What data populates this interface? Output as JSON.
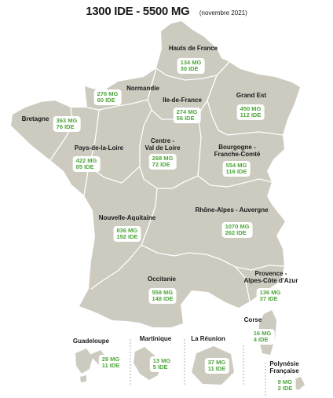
{
  "title": {
    "main": "1300 IDE - 5500 MG",
    "date": "(novembre 2021)"
  },
  "colors": {
    "land": "#cdcabf",
    "border": "#ffffff",
    "value": "#4ea63b",
    "label": "#1a1a1a"
  },
  "regions": [
    {
      "name": "Hauts de France",
      "mg": "134 MG",
      "ide": "30 IDE"
    },
    {
      "name": "Normandie",
      "mg": "276 MG",
      "ide": "60 IDE"
    },
    {
      "name": "Ile-de-France",
      "mg": "274 MG",
      "ide": "56 IDE"
    },
    {
      "name": "Grand Est",
      "mg": "450 MG",
      "ide": "112 IDE"
    },
    {
      "name": "Bretagne",
      "mg": "363 MG",
      "ide": "76 IDE"
    },
    {
      "name": "Pays-de-la-Loire",
      "mg": "422 MG",
      "ide": "85 IDE"
    },
    {
      "name": "Centre -\nVal de Loire",
      "mg": "268 MG",
      "ide": "72 IDE"
    },
    {
      "name": "Bourgogne -\nFranche-Comté",
      "mg": "554 MG",
      "ide": "116 IDE"
    },
    {
      "name": "Nouvelle-Aquitaine",
      "mg": "836 MG",
      "ide": "192 IDE"
    },
    {
      "name": "Rhône-Alpes - Auvergne",
      "mg": "1070 MG",
      "ide": "262 IDE"
    },
    {
      "name": "Occitanie",
      "mg": "559 MG",
      "ide": "148 IDE"
    },
    {
      "name": "Provence -\nAlpes-Côte d'Azur",
      "mg": "136 MG",
      "ide": "37 IDE"
    },
    {
      "name": "Corse",
      "mg": "16 MG",
      "ide": "4 IDE"
    },
    {
      "name": "Guadeloupe",
      "mg": "29 MG",
      "ide": "11 IDE"
    },
    {
      "name": "Martinique",
      "mg": "13 MG",
      "ide": "5 IDE"
    },
    {
      "name": "La Réunion",
      "mg": "37 MG",
      "ide": "11 IDE"
    },
    {
      "name": "Polynésie\nFrançaise",
      "mg": "9 MG",
      "ide": "2 IDE"
    }
  ]
}
